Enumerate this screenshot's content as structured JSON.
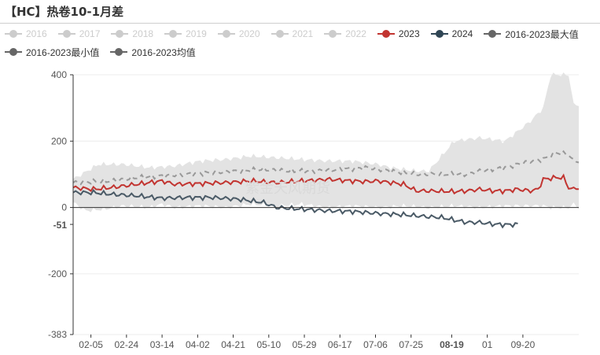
{
  "title": "【HC】热卷10-1月差",
  "legend": [
    {
      "label": "2016",
      "color": "#cccccc",
      "active": false
    },
    {
      "label": "2017",
      "color": "#cccccc",
      "active": false
    },
    {
      "label": "2018",
      "color": "#cccccc",
      "active": false
    },
    {
      "label": "2019",
      "color": "#cccccc",
      "active": false
    },
    {
      "label": "2020",
      "color": "#cccccc",
      "active": false
    },
    {
      "label": "2021",
      "color": "#cccccc",
      "active": false
    },
    {
      "label": "2022",
      "color": "#cccccc",
      "active": false
    },
    {
      "label": "2023",
      "color": "#c23531",
      "active": true
    },
    {
      "label": "2024",
      "color": "#2f4554",
      "active": true
    },
    {
      "label": "2016-2023最大值",
      "color": "#666666",
      "active": true
    },
    {
      "label": "2016-2023最小值",
      "color": "#666666",
      "active": true
    },
    {
      "label": "2016-2023均值",
      "color": "#666666",
      "active": true
    }
  ],
  "watermark": "紫金天风期货",
  "chart_data": {
    "type": "line",
    "ylim": [
      -383,
      400
    ],
    "y_ticks": [
      400,
      200,
      0,
      -200,
      -383
    ],
    "x_tick_labels": [
      "02-05",
      "02-24",
      "03-14",
      "04-02",
      "04-21",
      "05-10",
      "05-29",
      "06-17",
      "07-06",
      "07-25",
      "08-19",
      "01",
      "09-20"
    ],
    "x_tick_positions_index": [
      7,
      21,
      35,
      49,
      63,
      77,
      91,
      105,
      119,
      133,
      149,
      163,
      177
    ],
    "highlight_x_label": "08-19",
    "highlight_y_label": "-51",
    "x_count": 200,
    "grid": true,
    "band": {
      "name": "2016-2023 range",
      "color": "#e3e3e3",
      "upper_knots": [
        [
          0,
          85
        ],
        [
          10,
          130
        ],
        [
          20,
          130
        ],
        [
          30,
          120
        ],
        [
          40,
          125
        ],
        [
          50,
          140
        ],
        [
          60,
          145
        ],
        [
          70,
          155
        ],
        [
          80,
          150
        ],
        [
          90,
          145
        ],
        [
          100,
          140
        ],
        [
          110,
          140
        ],
        [
          120,
          130
        ],
        [
          125,
          120
        ],
        [
          135,
          110
        ],
        [
          140,
          110
        ],
        [
          150,
          200
        ],
        [
          160,
          210
        ],
        [
          170,
          200
        ],
        [
          180,
          260
        ],
        [
          185,
          300
        ],
        [
          188,
          400
        ],
        [
          195,
          400
        ],
        [
          197,
          310
        ],
        [
          199,
          310
        ]
      ],
      "lower_knots": [
        [
          0,
          15
        ],
        [
          5,
          -10
        ],
        [
          12,
          -5
        ],
        [
          20,
          5
        ],
        [
          30,
          0
        ],
        [
          35,
          10
        ],
        [
          40,
          0
        ],
        [
          50,
          5
        ],
        [
          60,
          0
        ],
        [
          70,
          10
        ],
        [
          80,
          5
        ],
        [
          90,
          10
        ],
        [
          100,
          0
        ],
        [
          110,
          5
        ],
        [
          120,
          0
        ],
        [
          130,
          5
        ],
        [
          140,
          0
        ],
        [
          150,
          5
        ],
        [
          160,
          0
        ],
        [
          170,
          5
        ],
        [
          180,
          5
        ],
        [
          185,
          5
        ],
        [
          188,
          0
        ],
        [
          195,
          0
        ],
        [
          197,
          10
        ],
        [
          199,
          0
        ]
      ]
    },
    "series": [
      {
        "name": "2016-2023均值",
        "color": "#999999",
        "dashed": true,
        "width": 2,
        "knots": [
          [
            0,
            75
          ],
          [
            15,
            80
          ],
          [
            25,
            90
          ],
          [
            35,
            95
          ],
          [
            45,
            100
          ],
          [
            55,
            105
          ],
          [
            65,
            110
          ],
          [
            75,
            115
          ],
          [
            85,
            110
          ],
          [
            95,
            110
          ],
          [
            105,
            115
          ],
          [
            115,
            120
          ],
          [
            125,
            110
          ],
          [
            135,
            100
          ],
          [
            145,
            100
          ],
          [
            155,
            100
          ],
          [
            160,
            110
          ],
          [
            170,
            120
          ],
          [
            180,
            140
          ],
          [
            185,
            145
          ],
          [
            190,
            165
          ],
          [
            195,
            160
          ],
          [
            197,
            140
          ],
          [
            199,
            140
          ]
        ]
      },
      {
        "name": "2023",
        "color": "#c23531",
        "width": 2,
        "knots": [
          [
            0,
            60
          ],
          [
            8,
            55
          ],
          [
            15,
            60
          ],
          [
            20,
            65
          ],
          [
            25,
            70
          ],
          [
            30,
            75
          ],
          [
            35,
            80
          ],
          [
            40,
            70
          ],
          [
            50,
            72
          ],
          [
            60,
            75
          ],
          [
            70,
            80
          ],
          [
            80,
            75
          ],
          [
            90,
            80
          ],
          [
            95,
            82
          ],
          [
            100,
            85
          ],
          [
            110,
            80
          ],
          [
            115,
            78
          ],
          [
            120,
            80
          ],
          [
            125,
            75
          ],
          [
            130,
            70
          ],
          [
            135,
            50
          ],
          [
            140,
            50
          ],
          [
            150,
            48
          ],
          [
            155,
            50
          ],
          [
            160,
            55
          ],
          [
            165,
            50
          ],
          [
            170,
            50
          ],
          [
            175,
            55
          ],
          [
            180,
            50
          ],
          [
            183,
            55
          ],
          [
            185,
            85
          ],
          [
            190,
            90
          ],
          [
            193,
            90
          ],
          [
            195,
            60
          ],
          [
            197,
            55
          ],
          [
            199,
            60
          ]
        ]
      },
      {
        "name": "2024",
        "color": "#4a5a66",
        "width": 2,
        "knots": [
          [
            0,
            45
          ],
          [
            8,
            45
          ],
          [
            15,
            40
          ],
          [
            25,
            35
          ],
          [
            35,
            28
          ],
          [
            45,
            30
          ],
          [
            55,
            30
          ],
          [
            65,
            25
          ],
          [
            75,
            15
          ],
          [
            80,
            0
          ],
          [
            90,
            -5
          ],
          [
            100,
            -10
          ],
          [
            110,
            -12
          ],
          [
            120,
            -18
          ],
          [
            130,
            -22
          ],
          [
            140,
            -28
          ],
          [
            145,
            -30
          ],
          [
            150,
            -38
          ],
          [
            155,
            -45
          ],
          [
            160,
            -45
          ],
          [
            165,
            -50
          ],
          [
            170,
            -52
          ],
          [
            175,
            -51
          ]
        ]
      }
    ]
  }
}
